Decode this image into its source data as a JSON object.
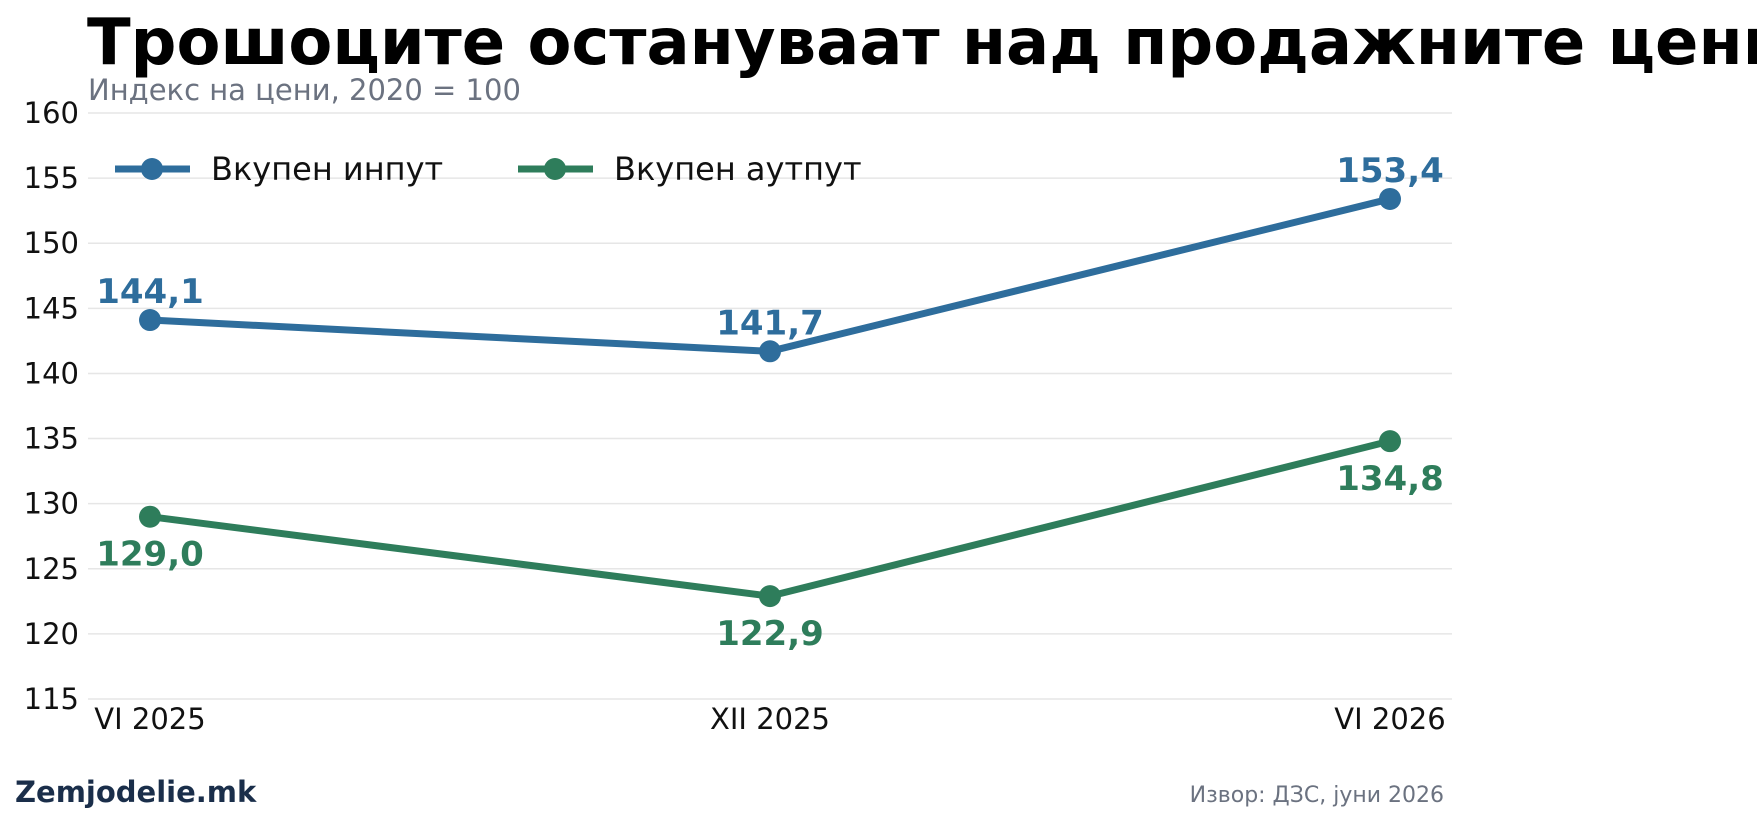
{
  "chart_data": {
    "type": "line",
    "title": "Трошоците остануваат над продажните цени",
    "subtitle": "Индекс на цени, 2020 = 100",
    "categories": [
      "VI 2025",
      "XII 2025",
      "VI 2026"
    ],
    "ylim": [
      115,
      160
    ],
    "yticks": [
      115,
      120,
      125,
      130,
      135,
      140,
      145,
      150,
      155,
      160
    ],
    "grid": true,
    "legend_position": "top-left",
    "series": [
      {
        "name": "Вкупен инпут",
        "color": "#2e6d9c",
        "values": [
          144.1,
          141.7,
          153.4
        ],
        "labels": [
          "144,1",
          "141,7",
          "153,4"
        ],
        "label_placement": [
          "above",
          "above",
          "above"
        ]
      },
      {
        "name": "Вкупен аутпут",
        "color": "#2e7d5b",
        "values": [
          129.0,
          122.9,
          134.8
        ],
        "labels": [
          "129,0",
          "122,9",
          "134,8"
        ],
        "label_placement": [
          "below",
          "below",
          "below"
        ]
      }
    ]
  },
  "footer": {
    "brand": "Zemjodelie.mk",
    "source": "Извор: ДЗС, јуни 2026"
  }
}
